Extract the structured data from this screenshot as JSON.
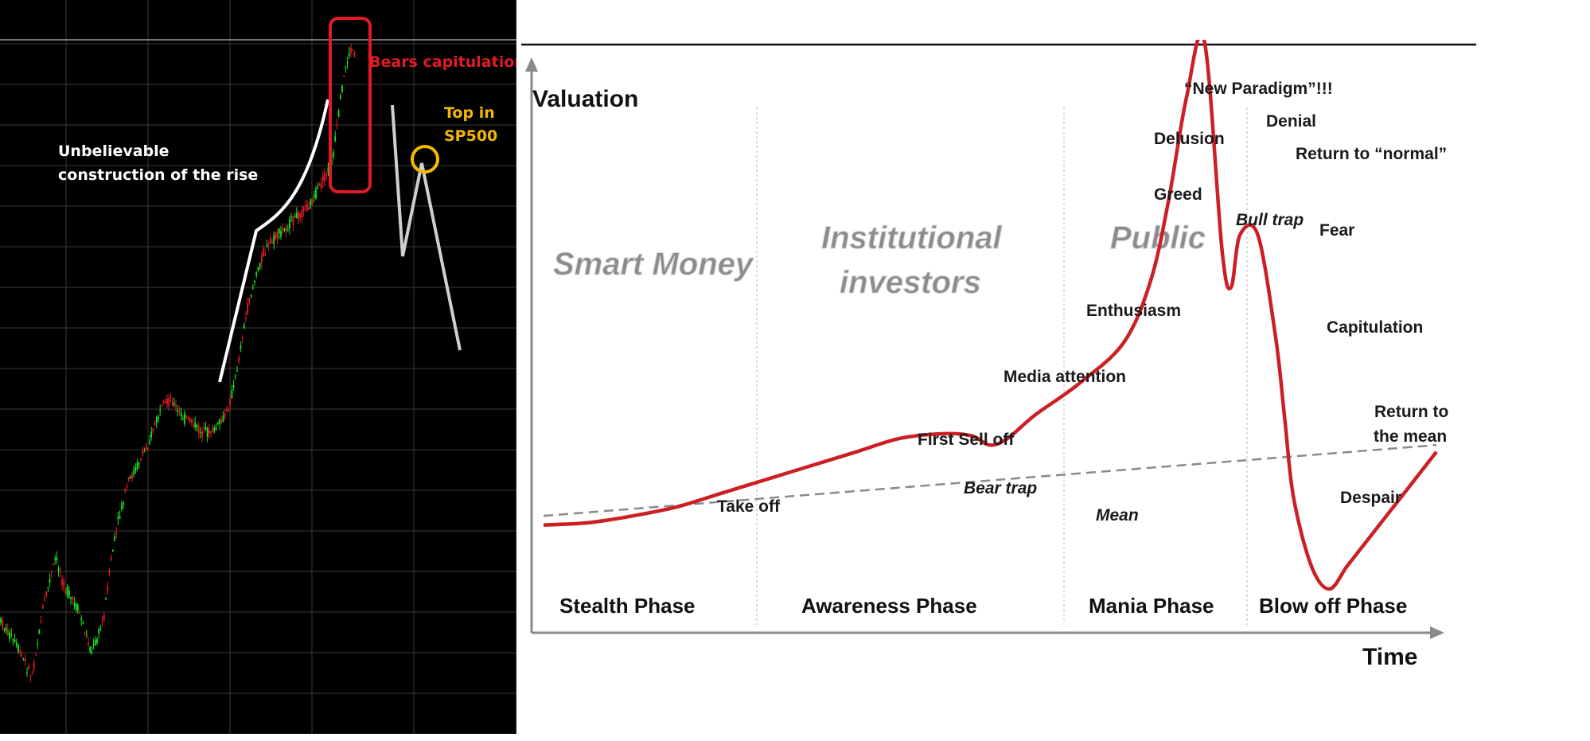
{
  "left_chart": {
    "annotations": {
      "rise_line1": "Unbelievable",
      "rise_line2": "construction of the rise",
      "bears": "Bears capitulation",
      "top_line1": "Top in",
      "top_line2": "SP500"
    },
    "colors": {
      "background": "#000000",
      "grid": "#3a3a3a",
      "up_candle": "#19e619",
      "down_candle": "#e01b24",
      "highlight_box": "#e01b24",
      "top_circle": "#f5b800",
      "annotation_line": "#cfcfcf"
    }
  },
  "chart_data": {
    "type": "line",
    "title": "",
    "ylabel": "Valuation",
    "xlabel": "Time",
    "x": [
      0,
      5,
      10,
      15,
      20,
      25,
      30,
      35,
      40,
      45,
      48,
      50,
      52,
      55,
      60,
      65,
      68,
      70,
      72,
      74,
      76,
      77,
      78,
      80,
      82,
      83,
      84,
      86,
      88,
      90,
      92,
      94,
      96,
      98,
      100
    ],
    "series": [
      {
        "values": [
          8,
          9,
          12,
          16,
          22,
          28,
          34,
          40,
          46,
          48,
          47,
          43,
          46,
          56,
          70,
          88,
          115,
          150,
          195,
          220,
          128,
          112,
          135,
          135,
          90,
          55,
          20,
          -10,
          -20,
          -10,
          0,
          10,
          20,
          30,
          40
        ]
      }
    ],
    "mean_line": {
      "label": "Mean",
      "y_start": 12,
      "y_end": 43
    },
    "group_labels": [
      "Smart Money",
      "Institutional investors",
      "Public"
    ],
    "phases": [
      "Stealth Phase",
      "Awareness Phase",
      "Mania Phase",
      "Blow off Phase"
    ],
    "annotations": {
      "take_off": "Take off",
      "first_sell_off": "First Sell off",
      "bear_trap": "Bear trap",
      "mean": "Mean",
      "media_attention": "Media attention",
      "enthusiasm": "Enthusiasm",
      "greed": "Greed",
      "delusion": "Delusion",
      "new_paradigm": "“New Paradigm”!!!",
      "denial": "Denial",
      "return_normal": "Return to “normal”",
      "bull_trap": "Bull trap",
      "fear": "Fear",
      "capitulation": "Capitulation",
      "return_mean_1": "Return to",
      "return_mean_2": "the mean",
      "despair": "Despair"
    },
    "group_text": {
      "smart_money": "Smart Money",
      "institutional_1": "Institutional",
      "institutional_2": "investors",
      "public": "Public"
    },
    "colors": {
      "curve": "#cc1f24",
      "mean_line": "#8a8a8a",
      "axis": "#8a8a8a",
      "divider": "#cfcfcf"
    }
  }
}
